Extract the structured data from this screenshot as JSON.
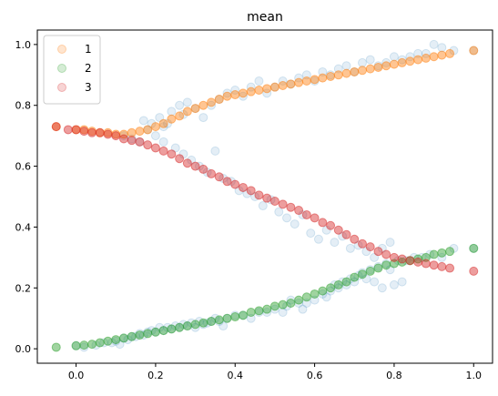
{
  "chart_data": {
    "type": "scatter",
    "title": "mean",
    "xlabel": "",
    "ylabel": "",
    "xlim": [
      -0.0975,
      1.0475
    ],
    "ylim": [
      -0.0475,
      1.0475
    ],
    "xticks": [
      0.0,
      0.2,
      0.4,
      0.6,
      0.8,
      1.0
    ],
    "xtick_labels": [
      "0.0",
      "0.2",
      "0.4",
      "0.6",
      "0.8",
      "1.0"
    ],
    "yticks": [
      0.0,
      0.2,
      0.4,
      0.6,
      0.8,
      1.0
    ],
    "ytick_labels": [
      "0.0",
      "0.2",
      "0.4",
      "0.6",
      "0.8",
      "1.0"
    ],
    "grid": false,
    "legend": {
      "placement": "upper-left",
      "entries": [
        "1",
        "2",
        "3"
      ]
    },
    "background_series": {
      "color": "#1f77b4",
      "alpha": 0.12,
      "points": [
        [
          0.0,
          0.01
        ],
        [
          0.02,
          0.005
        ],
        [
          0.05,
          0.012
        ],
        [
          0.07,
          0.02
        ],
        [
          0.09,
          0.02
        ],
        [
          0.1,
          0.025
        ],
        [
          0.11,
          0.015
        ],
        [
          0.12,
          0.035
        ],
        [
          0.13,
          0.03
        ],
        [
          0.14,
          0.04
        ],
        [
          0.15,
          0.04
        ],
        [
          0.16,
          0.05
        ],
        [
          0.17,
          0.045
        ],
        [
          0.18,
          0.055
        ],
        [
          0.19,
          0.06
        ],
        [
          0.2,
          0.055
        ],
        [
          0.21,
          0.07
        ],
        [
          0.22,
          0.06
        ],
        [
          0.23,
          0.07
        ],
        [
          0.24,
          0.065
        ],
        [
          0.25,
          0.075
        ],
        [
          0.26,
          0.07
        ],
        [
          0.27,
          0.08
        ],
        [
          0.28,
          0.075
        ],
        [
          0.29,
          0.085
        ],
        [
          0.3,
          0.07
        ],
        [
          0.31,
          0.09
        ],
        [
          0.32,
          0.08
        ],
        [
          0.33,
          0.085
        ],
        [
          0.34,
          0.09
        ],
        [
          0.35,
          0.1
        ],
        [
          0.36,
          0.09
        ],
        [
          0.37,
          0.075
        ],
        [
          0.38,
          0.1
        ],
        [
          0.4,
          0.11
        ],
        [
          0.42,
          0.11
        ],
        [
          0.44,
          0.1
        ],
        [
          0.46,
          0.12
        ],
        [
          0.48,
          0.12
        ],
        [
          0.5,
          0.13
        ],
        [
          0.52,
          0.12
        ],
        [
          0.53,
          0.14
        ],
        [
          0.54,
          0.16
        ],
        [
          0.56,
          0.15
        ],
        [
          0.57,
          0.13
        ],
        [
          0.58,
          0.15
        ],
        [
          0.6,
          0.16
        ],
        [
          0.62,
          0.18
        ],
        [
          0.63,
          0.17
        ],
        [
          0.64,
          0.19
        ],
        [
          0.65,
          0.21
        ],
        [
          0.66,
          0.2
        ],
        [
          0.67,
          0.22
        ],
        [
          0.68,
          0.21
        ],
        [
          0.69,
          0.23
        ],
        [
          0.7,
          0.22
        ],
        [
          0.71,
          0.24
        ],
        [
          0.72,
          0.25
        ],
        [
          0.73,
          0.23
        ],
        [
          0.74,
          0.26
        ],
        [
          0.75,
          0.22
        ],
        [
          0.76,
          0.27
        ],
        [
          0.77,
          0.2
        ],
        [
          0.78,
          0.28
        ],
        [
          0.79,
          0.26
        ],
        [
          0.8,
          0.21
        ],
        [
          0.81,
          0.29
        ],
        [
          0.82,
          0.22
        ],
        [
          0.83,
          0.29
        ],
        [
          0.85,
          0.3
        ],
        [
          0.87,
          0.3
        ],
        [
          0.89,
          0.31
        ],
        [
          0.92,
          0.3
        ],
        [
          0.95,
          0.33
        ],
        [
          1.0,
          0.33
        ],
        [
          0.12,
          0.7
        ],
        [
          0.14,
          0.69
        ],
        [
          0.16,
          0.68
        ],
        [
          0.17,
          0.75
        ],
        [
          0.18,
          0.72
        ],
        [
          0.19,
          0.74
        ],
        [
          0.2,
          0.7
        ],
        [
          0.21,
          0.76
        ],
        [
          0.22,
          0.73
        ],
        [
          0.22,
          0.68
        ],
        [
          0.23,
          0.74
        ],
        [
          0.24,
          0.78
        ],
        [
          0.25,
          0.66
        ],
        [
          0.26,
          0.8
        ],
        [
          0.27,
          0.64
        ],
        [
          0.27,
          0.77
        ],
        [
          0.28,
          0.81
        ],
        [
          0.29,
          0.62
        ],
        [
          0.3,
          0.79
        ],
        [
          0.31,
          0.6
        ],
        [
          0.32,
          0.76
        ],
        [
          0.33,
          0.58
        ],
        [
          0.34,
          0.8
        ],
        [
          0.35,
          0.65
        ],
        [
          0.36,
          0.82
        ],
        [
          0.37,
          0.56
        ],
        [
          0.38,
          0.84
        ],
        [
          0.39,
          0.55
        ],
        [
          0.4,
          0.85
        ],
        [
          0.41,
          0.52
        ],
        [
          0.42,
          0.83
        ],
        [
          0.43,
          0.51
        ],
        [
          0.44,
          0.86
        ],
        [
          0.45,
          0.5
        ],
        [
          0.46,
          0.88
        ],
        [
          0.47,
          0.47
        ],
        [
          0.48,
          0.84
        ],
        [
          0.49,
          0.49
        ],
        [
          0.5,
          0.86
        ],
        [
          0.51,
          0.45
        ],
        [
          0.52,
          0.88
        ],
        [
          0.53,
          0.43
        ],
        [
          0.54,
          0.87
        ],
        [
          0.55,
          0.41
        ],
        [
          0.56,
          0.89
        ],
        [
          0.57,
          0.44
        ],
        [
          0.58,
          0.9
        ],
        [
          0.59,
          0.38
        ],
        [
          0.6,
          0.88
        ],
        [
          0.61,
          0.36
        ],
        [
          0.62,
          0.91
        ],
        [
          0.63,
          0.39
        ],
        [
          0.64,
          0.9
        ],
        [
          0.65,
          0.35
        ],
        [
          0.66,
          0.92
        ],
        [
          0.67,
          0.37
        ],
        [
          0.68,
          0.93
        ],
        [
          0.69,
          0.33
        ],
        [
          0.7,
          0.91
        ],
        [
          0.71,
          0.34
        ],
        [
          0.72,
          0.94
        ],
        [
          0.73,
          0.32
        ],
        [
          0.74,
          0.95
        ],
        [
          0.75,
          0.3
        ],
        [
          0.76,
          0.93
        ],
        [
          0.77,
          0.33
        ],
        [
          0.78,
          0.94
        ],
        [
          0.79,
          0.35
        ],
        [
          0.8,
          0.96
        ],
        [
          0.82,
          0.95
        ],
        [
          0.84,
          0.96
        ],
        [
          0.86,
          0.97
        ],
        [
          0.88,
          0.97
        ],
        [
          0.9,
          1.0
        ],
        [
          0.92,
          0.99
        ],
        [
          0.95,
          0.98
        ],
        [
          1.0,
          0.98
        ]
      ]
    },
    "series": [
      {
        "name": "1",
        "color": "#ff7f0e",
        "points": [
          [
            -0.05,
            0.73
          ],
          [
            0.0,
            0.72
          ],
          [
            0.02,
            0.72
          ],
          [
            0.04,
            0.715
          ],
          [
            0.06,
            0.71
          ],
          [
            0.08,
            0.71
          ],
          [
            0.1,
            0.705
          ],
          [
            0.12,
            0.705
          ],
          [
            0.14,
            0.71
          ],
          [
            0.16,
            0.715
          ],
          [
            0.18,
            0.72
          ],
          [
            0.2,
            0.73
          ],
          [
            0.22,
            0.74
          ],
          [
            0.24,
            0.755
          ],
          [
            0.26,
            0.765
          ],
          [
            0.28,
            0.78
          ],
          [
            0.3,
            0.79
          ],
          [
            0.32,
            0.8
          ],
          [
            0.34,
            0.81
          ],
          [
            0.36,
            0.82
          ],
          [
            0.38,
            0.83
          ],
          [
            0.4,
            0.835
          ],
          [
            0.42,
            0.84
          ],
          [
            0.44,
            0.845
          ],
          [
            0.46,
            0.85
          ],
          [
            0.48,
            0.855
          ],
          [
            0.5,
            0.86
          ],
          [
            0.52,
            0.865
          ],
          [
            0.54,
            0.87
          ],
          [
            0.56,
            0.875
          ],
          [
            0.58,
            0.88
          ],
          [
            0.6,
            0.885
          ],
          [
            0.62,
            0.89
          ],
          [
            0.64,
            0.895
          ],
          [
            0.66,
            0.9
          ],
          [
            0.68,
            0.905
          ],
          [
            0.7,
            0.91
          ],
          [
            0.72,
            0.915
          ],
          [
            0.74,
            0.92
          ],
          [
            0.76,
            0.925
          ],
          [
            0.78,
            0.93
          ],
          [
            0.8,
            0.935
          ],
          [
            0.82,
            0.94
          ],
          [
            0.84,
            0.945
          ],
          [
            0.86,
            0.95
          ],
          [
            0.88,
            0.955
          ],
          [
            0.9,
            0.96
          ],
          [
            0.92,
            0.965
          ],
          [
            0.94,
            0.97
          ],
          [
            1.0,
            0.98
          ]
        ]
      },
      {
        "name": "2",
        "color": "#2ca02c",
        "points": [
          [
            -0.05,
            0.005
          ],
          [
            0.0,
            0.01
          ],
          [
            0.02,
            0.012
          ],
          [
            0.04,
            0.015
          ],
          [
            0.06,
            0.02
          ],
          [
            0.08,
            0.025
          ],
          [
            0.1,
            0.03
          ],
          [
            0.12,
            0.035
          ],
          [
            0.14,
            0.04
          ],
          [
            0.16,
            0.045
          ],
          [
            0.18,
            0.05
          ],
          [
            0.2,
            0.055
          ],
          [
            0.22,
            0.06
          ],
          [
            0.24,
            0.065
          ],
          [
            0.26,
            0.07
          ],
          [
            0.28,
            0.075
          ],
          [
            0.3,
            0.08
          ],
          [
            0.32,
            0.085
          ],
          [
            0.34,
            0.09
          ],
          [
            0.36,
            0.095
          ],
          [
            0.38,
            0.1
          ],
          [
            0.4,
            0.105
          ],
          [
            0.42,
            0.11
          ],
          [
            0.44,
            0.12
          ],
          [
            0.46,
            0.125
          ],
          [
            0.48,
            0.13
          ],
          [
            0.5,
            0.14
          ],
          [
            0.52,
            0.145
          ],
          [
            0.54,
            0.15
          ],
          [
            0.56,
            0.16
          ],
          [
            0.58,
            0.17
          ],
          [
            0.6,
            0.18
          ],
          [
            0.62,
            0.19
          ],
          [
            0.64,
            0.2
          ],
          [
            0.66,
            0.21
          ],
          [
            0.68,
            0.22
          ],
          [
            0.7,
            0.235
          ],
          [
            0.72,
            0.245
          ],
          [
            0.74,
            0.255
          ],
          [
            0.76,
            0.265
          ],
          [
            0.78,
            0.275
          ],
          [
            0.8,
            0.28
          ],
          [
            0.82,
            0.285
          ],
          [
            0.84,
            0.29
          ],
          [
            0.86,
            0.295
          ],
          [
            0.88,
            0.3
          ],
          [
            0.9,
            0.31
          ],
          [
            0.92,
            0.315
          ],
          [
            0.94,
            0.32
          ],
          [
            1.0,
            0.33
          ]
        ]
      },
      {
        "name": "3",
        "color": "#d62728",
        "points": [
          [
            -0.05,
            0.73
          ],
          [
            -0.02,
            0.72
          ],
          [
            0.0,
            0.72
          ],
          [
            0.02,
            0.715
          ],
          [
            0.04,
            0.71
          ],
          [
            0.06,
            0.71
          ],
          [
            0.08,
            0.705
          ],
          [
            0.1,
            0.7
          ],
          [
            0.12,
            0.69
          ],
          [
            0.14,
            0.685
          ],
          [
            0.16,
            0.68
          ],
          [
            0.18,
            0.67
          ],
          [
            0.2,
            0.66
          ],
          [
            0.22,
            0.65
          ],
          [
            0.24,
            0.64
          ],
          [
            0.26,
            0.625
          ],
          [
            0.28,
            0.61
          ],
          [
            0.3,
            0.6
          ],
          [
            0.32,
            0.59
          ],
          [
            0.34,
            0.575
          ],
          [
            0.36,
            0.565
          ],
          [
            0.38,
            0.55
          ],
          [
            0.4,
            0.54
          ],
          [
            0.42,
            0.53
          ],
          [
            0.44,
            0.52
          ],
          [
            0.46,
            0.505
          ],
          [
            0.48,
            0.495
          ],
          [
            0.5,
            0.485
          ],
          [
            0.52,
            0.475
          ],
          [
            0.54,
            0.465
          ],
          [
            0.56,
            0.455
          ],
          [
            0.58,
            0.44
          ],
          [
            0.6,
            0.43
          ],
          [
            0.62,
            0.415
          ],
          [
            0.64,
            0.405
          ],
          [
            0.66,
            0.39
          ],
          [
            0.68,
            0.375
          ],
          [
            0.7,
            0.36
          ],
          [
            0.72,
            0.345
          ],
          [
            0.74,
            0.335
          ],
          [
            0.76,
            0.32
          ],
          [
            0.78,
            0.31
          ],
          [
            0.8,
            0.3
          ],
          [
            0.82,
            0.295
          ],
          [
            0.84,
            0.29
          ],
          [
            0.86,
            0.285
          ],
          [
            0.88,
            0.28
          ],
          [
            0.9,
            0.275
          ],
          [
            0.92,
            0.27
          ],
          [
            0.94,
            0.265
          ],
          [
            1.0,
            0.255
          ]
        ]
      }
    ]
  }
}
